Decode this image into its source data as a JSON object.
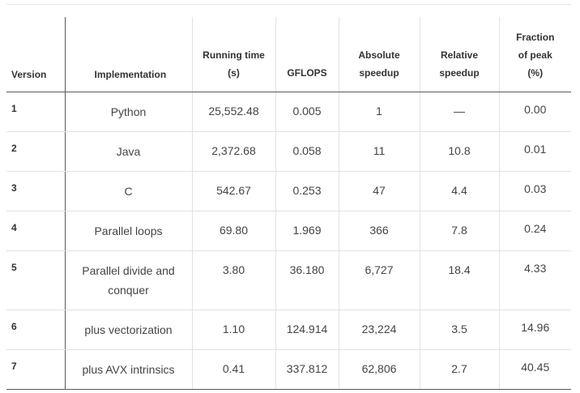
{
  "columns": {
    "version": "Version",
    "implementation": "Implementation",
    "running_time": [
      "Running time",
      "(s)"
    ],
    "gflops": "GFLOPS",
    "absolute_speedup": [
      "Absolute",
      "speedup"
    ],
    "relative_speedup": [
      "Relative",
      "speedup"
    ],
    "fraction_of_peak": [
      "Fraction",
      "of peak",
      "(%)"
    ]
  },
  "rows": [
    {
      "version": "1",
      "implementation": "Python",
      "running_time": "25,552.48",
      "gflops": "0.005",
      "absolute_speedup": "1",
      "relative_speedup": "—",
      "fraction_of_peak": "0.00"
    },
    {
      "version": "2",
      "implementation": "Java",
      "running_time": "2,372.68",
      "gflops": "0.058",
      "absolute_speedup": "11",
      "relative_speedup": "10.8",
      "fraction_of_peak": "0.01"
    },
    {
      "version": "3",
      "implementation": "C",
      "running_time": "542.67",
      "gflops": "0.253",
      "absolute_speedup": "47",
      "relative_speedup": "4.4",
      "fraction_of_peak": "0.03"
    },
    {
      "version": "4",
      "implementation": "Parallel loops",
      "running_time": "69.80",
      "gflops": "1.969",
      "absolute_speedup": "366",
      "relative_speedup": "7.8",
      "fraction_of_peak": "0.24"
    },
    {
      "version": "5",
      "implementation": "Parallel divide and conquer",
      "running_time": "3.80",
      "gflops": "36.180",
      "absolute_speedup": "6,727",
      "relative_speedup": "18.4",
      "fraction_of_peak": "4.33"
    },
    {
      "version": "6",
      "implementation": "plus vectorization",
      "running_time": "1.10",
      "gflops": "124.914",
      "absolute_speedup": "23,224",
      "relative_speedup": "3.5",
      "fraction_of_peak": "14.96"
    },
    {
      "version": "7",
      "implementation": "plus AVX intrinsics",
      "running_time": "0.41",
      "gflops": "337.812",
      "absolute_speedup": "62,806",
      "relative_speedup": "2.7",
      "fraction_of_peak": "40.45"
    }
  ]
}
